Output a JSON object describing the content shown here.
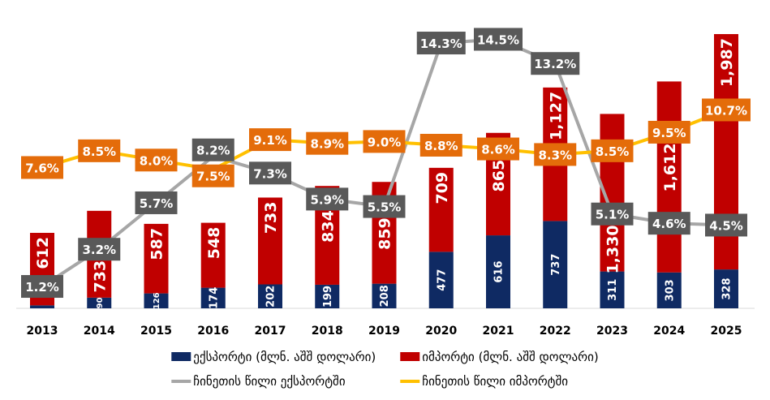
{
  "chart_data": {
    "type": "bar",
    "title": "",
    "categories": [
      "2013",
      "2014",
      "2015",
      "2016",
      "2017",
      "2018",
      "2019",
      "2020",
      "2021",
      "2022",
      "2023",
      "2024",
      "2025"
    ],
    "series": [
      {
        "name": "ექსპორტი (მლნ. აშშ დოლარი)",
        "kind": "bar",
        "color": "#0F2A63",
        "values": [
          25,
          90,
          126,
          174,
          202,
          199,
          208,
          477,
          616,
          737,
          311,
          303,
          328
        ],
        "labels": [
          "",
          "90",
          "126",
          "174",
          "202",
          "199",
          "208",
          "477",
          "616",
          "737",
          "311",
          "303",
          "328"
        ]
      },
      {
        "name": "იმპორტი (მლნ. აშშ დოლარი)",
        "kind": "bar",
        "color": "#C00000",
        "values": [
          612,
          733,
          587,
          548,
          733,
          834,
          859,
          709,
          865,
          1127,
          1330,
          1612,
          1987
        ],
        "labels": [
          "612",
          "733",
          "587",
          "548",
          "733",
          "834",
          "859",
          "709",
          "865",
          "1,127",
          "1,330",
          "1,612",
          "1,987"
        ]
      },
      {
        "name": "ჩინეთის წილი ექსპორტში",
        "kind": "line",
        "color": "#A6A6A6",
        "label_color": "#595959",
        "values": [
          1.2,
          3.2,
          5.7,
          8.2,
          7.3,
          5.9,
          5.5,
          14.3,
          14.5,
          13.2,
          5.1,
          4.6,
          4.5
        ],
        "labels": [
          "1.2%",
          "3.2%",
          "5.7%",
          "8.2%",
          "7.3%",
          "5.9%",
          "5.5%",
          "14.3%",
          "14.5%",
          "13.2%",
          "5.1%",
          "4.6%",
          "4.5%"
        ]
      },
      {
        "name": "ჩინეთის წილი იმპორტში",
        "kind": "line",
        "color": "#FFC000",
        "label_color": "#E46C0A",
        "values": [
          7.6,
          8.5,
          8.0,
          7.5,
          9.1,
          8.9,
          9.0,
          8.8,
          8.6,
          8.3,
          8.5,
          9.5,
          10.7
        ],
        "labels": [
          "7.6%",
          "8.5%",
          "8.0%",
          "7.5%",
          "9.1%",
          "8.9%",
          "9.0%",
          "8.8%",
          "8.6%",
          "8.3%",
          "8.5%",
          "9.5%",
          "10.7%"
        ]
      }
    ],
    "legend": "bottom",
    "grid": false
  }
}
